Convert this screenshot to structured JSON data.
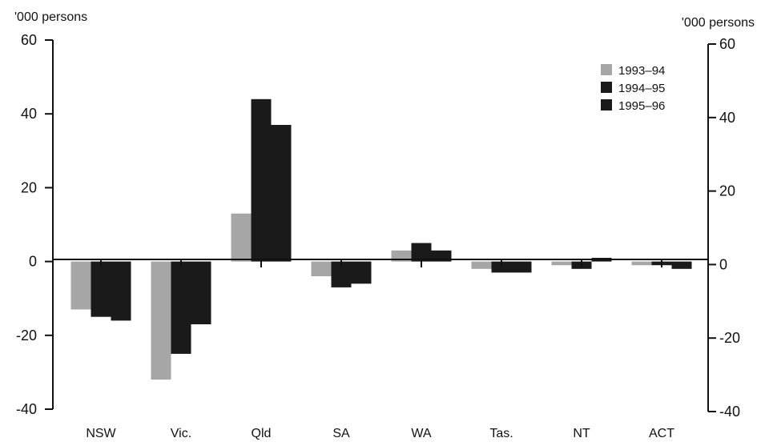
{
  "chart_data": {
    "type": "bar",
    "title": "",
    "ylabel_left": "'000 persons",
    "ylabel_right": "'000 persons",
    "ylim": [
      -40,
      60
    ],
    "yticks": [
      -40,
      -20,
      0,
      20,
      40,
      60
    ],
    "right_tick_labels": [
      "-40",
      "-20",
      "0",
      "20",
      "40",
      "60"
    ],
    "left_tick_labels": [
      "-40",
      "-20",
      "0",
      "20",
      "40",
      "60"
    ],
    "grid": false,
    "legend_position": "top-right",
    "categories": [
      "NSW",
      "Vic.",
      "Qld",
      "SA",
      "WA",
      "Tas.",
      "NT",
      "ACT"
    ],
    "series": [
      {
        "name": "1993–94",
        "color": "#a6a6a6",
        "values": [
          -13,
          -32,
          13,
          -4,
          3,
          -2,
          -1,
          -1
        ]
      },
      {
        "name": "1994–95",
        "color": "#1a1a1a",
        "values": [
          -15,
          -25,
          44,
          -7,
          5,
          -3,
          -2,
          -1
        ]
      },
      {
        "name": "1995–96",
        "color": "#1a1a1a",
        "values": [
          -16,
          -17,
          37,
          -6,
          3,
          -3,
          1,
          -2
        ]
      }
    ]
  }
}
